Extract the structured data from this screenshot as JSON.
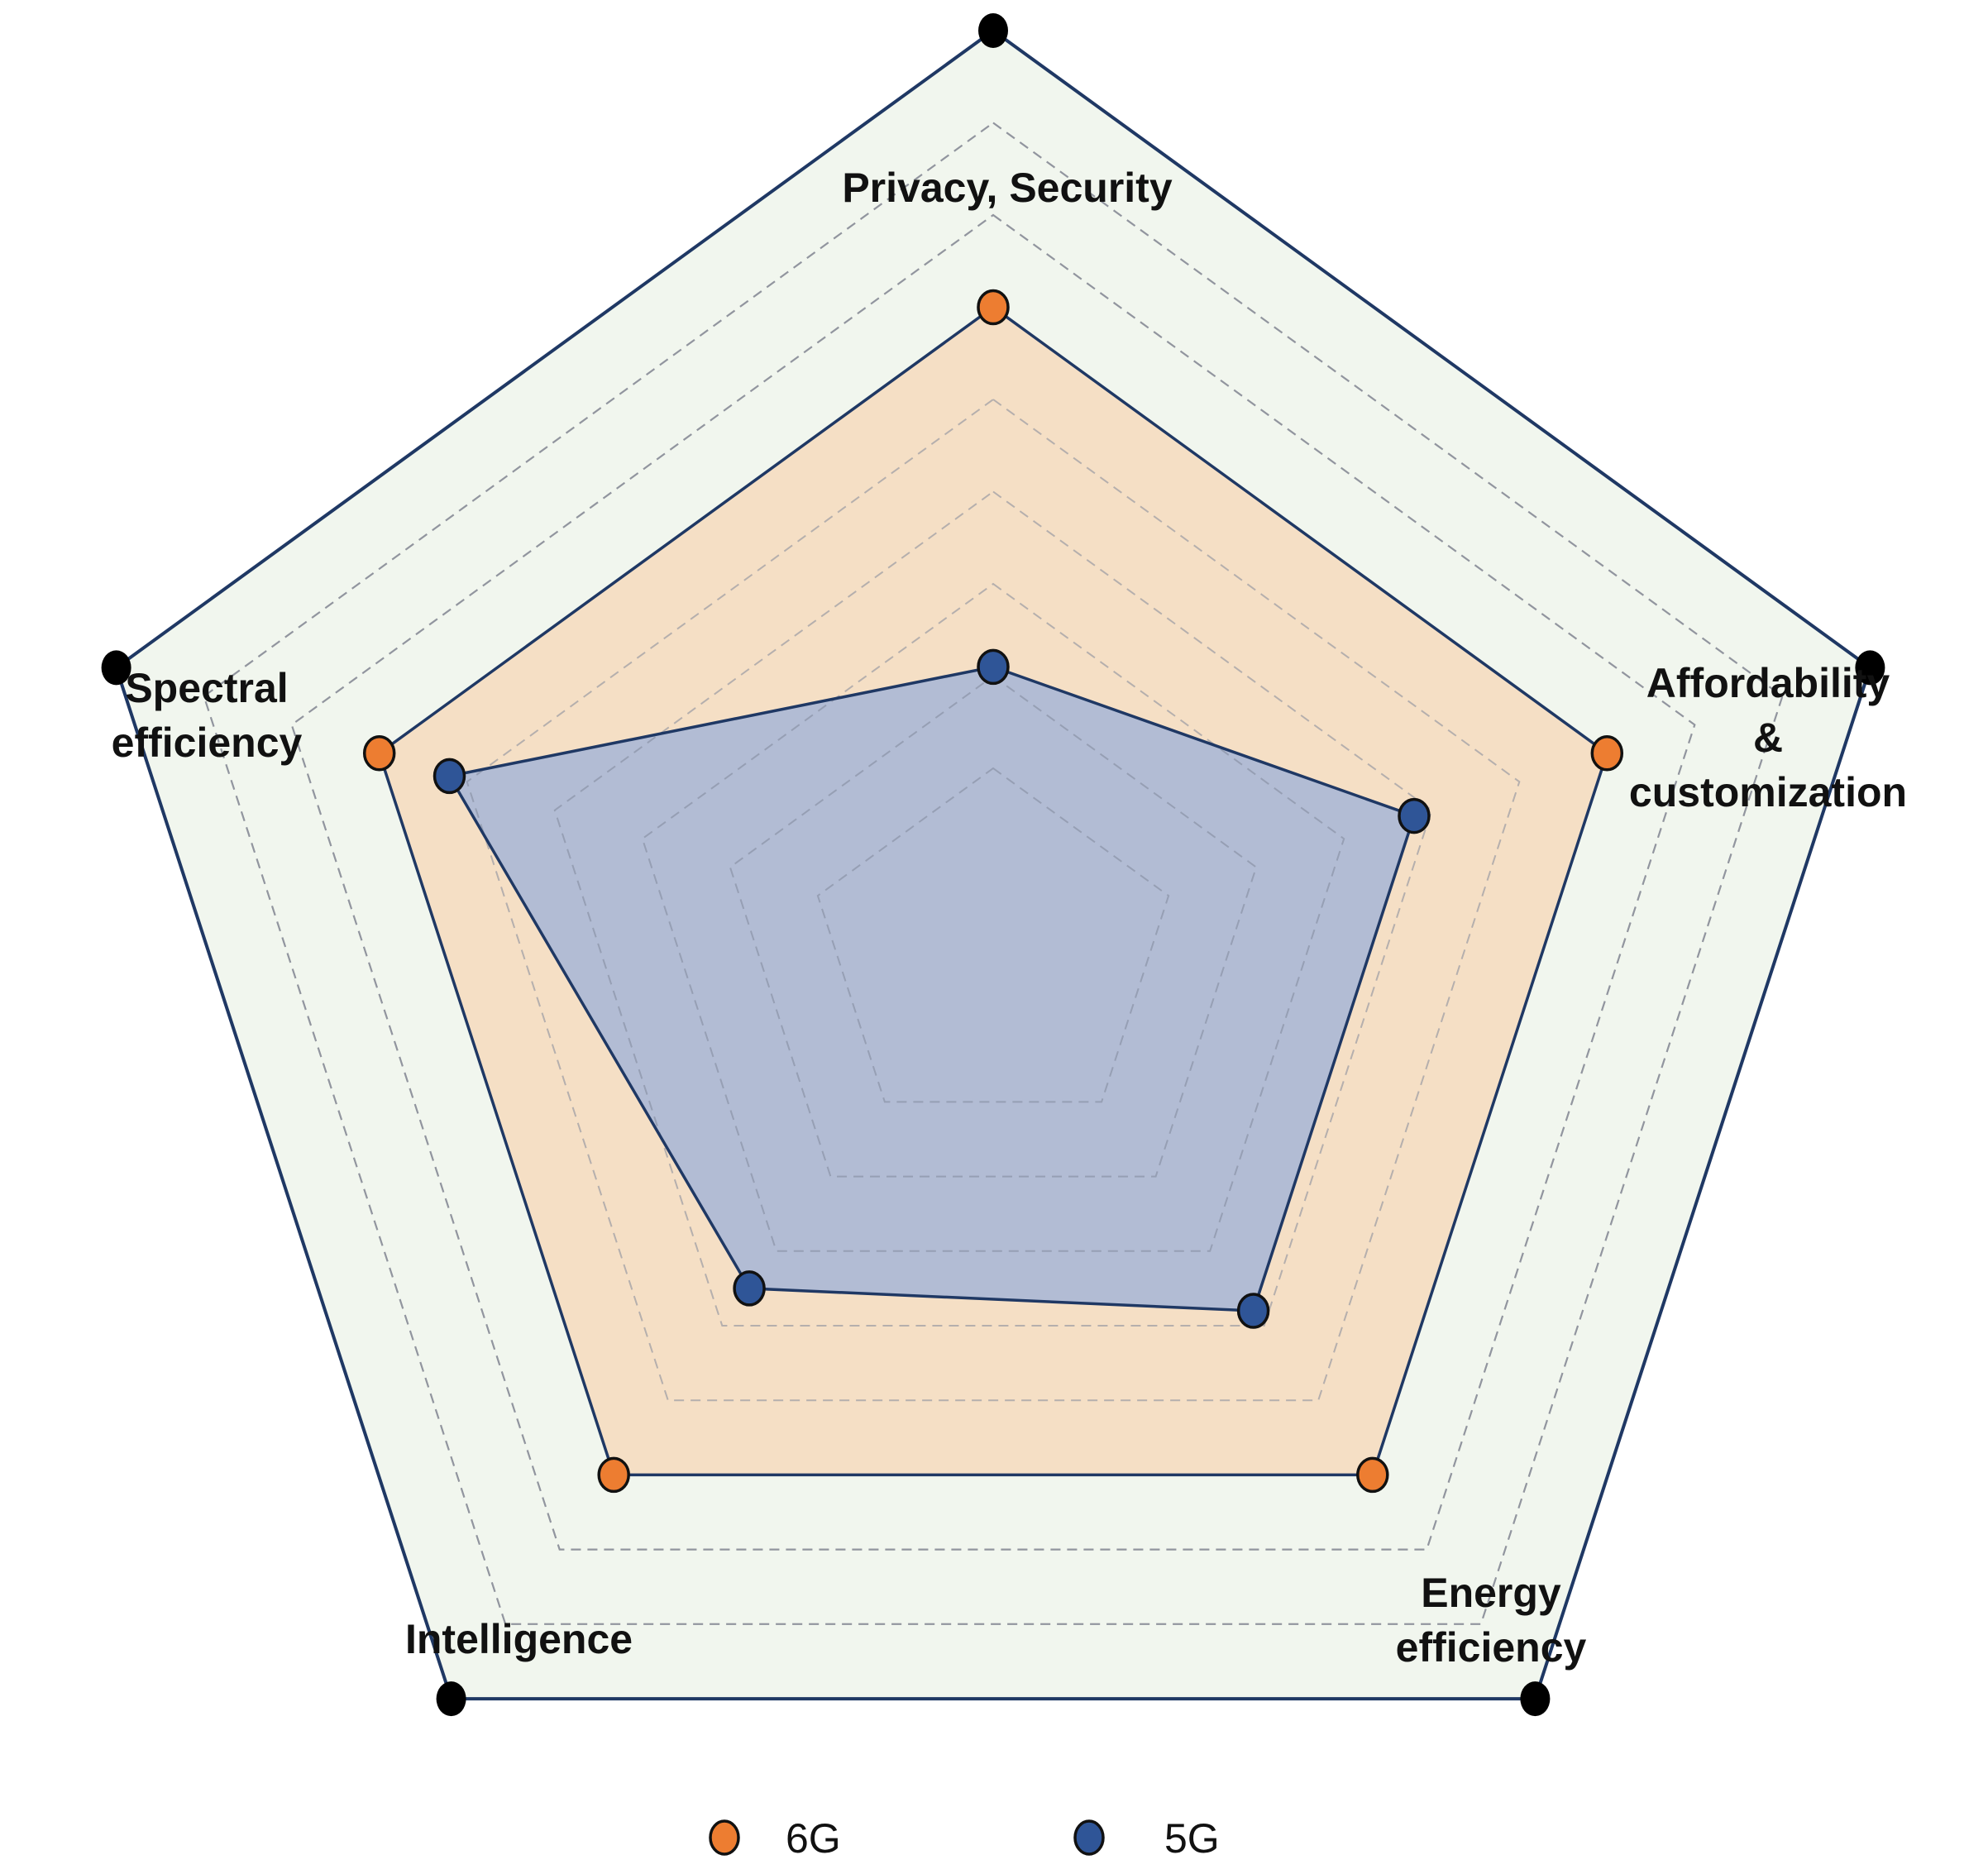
{
  "chart_data": {
    "type": "radar",
    "axes": [
      "Privacy, Security",
      "Affordability & customization",
      "Energy efficiency",
      "Intelligence",
      "Spectral efficiency"
    ],
    "axis_label_lines": [
      [
        "Privacy, Security"
      ],
      [
        "Affordability",
        "&",
        "customization"
      ],
      [
        "Energy",
        "efficiency"
      ],
      [
        "Intelligence"
      ],
      [
        "Spectral",
        "efficiency"
      ]
    ],
    "rlim": [
      0,
      1
    ],
    "grid_rings": [
      0.2,
      0.3,
      0.4,
      0.5,
      0.6,
      0.7,
      0.8,
      0.9
    ],
    "series": [
      {
        "name": "6G",
        "values": [
          0.7,
          0.7,
          0.7,
          0.7,
          0.7
        ],
        "color": "#ed7d31",
        "fill": "#f5dfc5"
      },
      {
        "name": "5G",
        "values": [
          0.31,
          0.48,
          0.48,
          0.45,
          0.62
        ],
        "color": "#2f5597",
        "fill": "#b2bcd4"
      }
    ],
    "outline_color": "#1f3864",
    "background_fill": "#f1f6ee",
    "vertex_marker_color": "#000000",
    "legend_position": "bottom"
  }
}
